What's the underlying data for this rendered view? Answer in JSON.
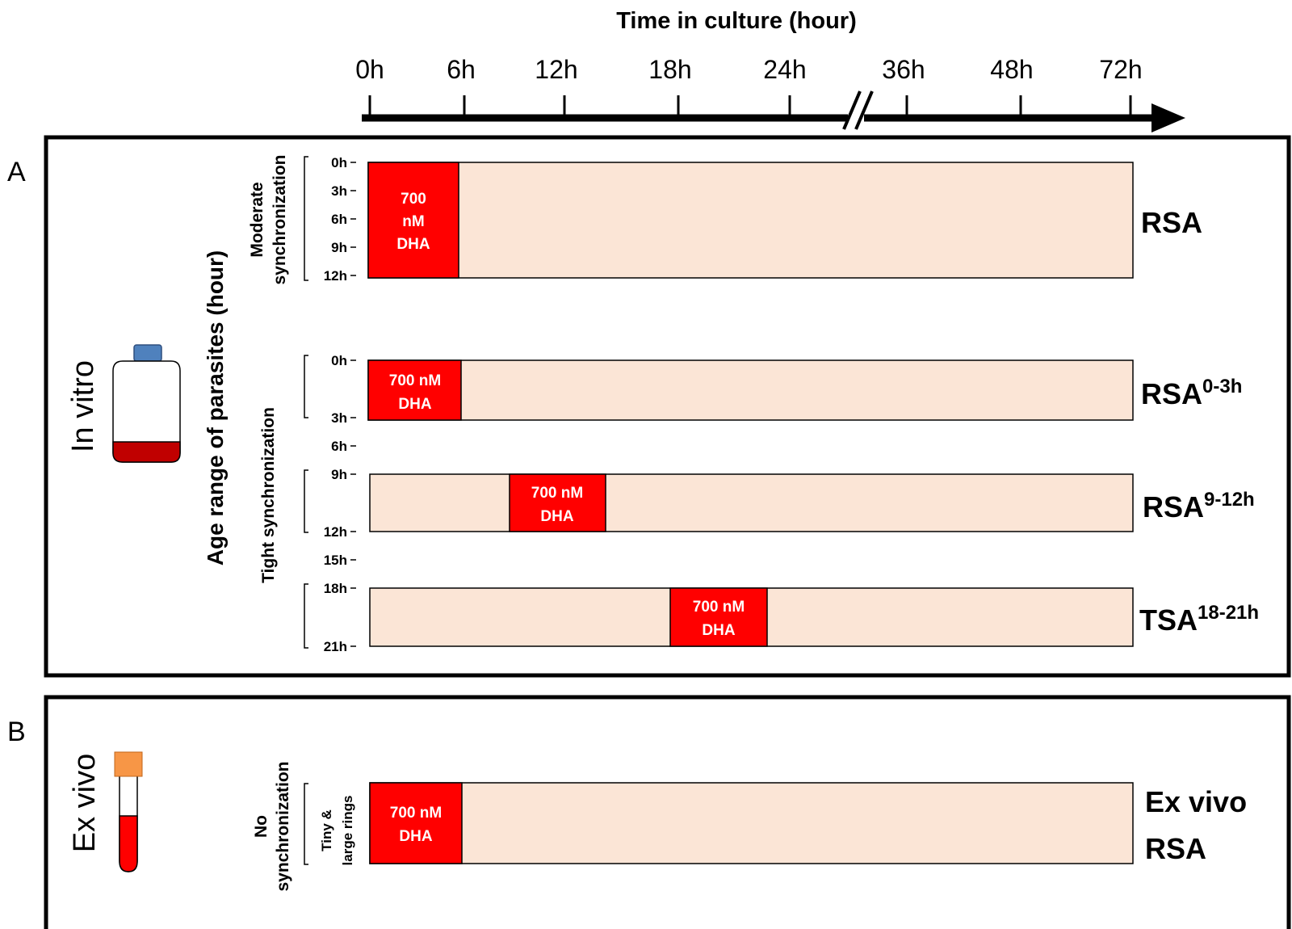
{
  "timeline": {
    "title": "Time in culture (hour)",
    "ticks": [
      "0h",
      "6h",
      "12h",
      "18h",
      "24h",
      "36h",
      "48h",
      "72h"
    ]
  },
  "panel_a": {
    "letter": "A",
    "condition_label": "In vitro",
    "y_axis_title": "Age range of parasites (hour)",
    "moderate_label_line1": "Moderate",
    "moderate_label_line2": "synchronization",
    "tight_label": "Tight synchronization",
    "moderate_ticks": [
      "0h",
      "3h",
      "6h",
      "9h",
      "12h"
    ],
    "tight_ticks": {
      "t0": "0h",
      "t3": "3h",
      "t6": "6h",
      "t9": "9h",
      "t12": "12h",
      "t15": "15h",
      "t18": "18h",
      "t21": "21h"
    },
    "rows": [
      {
        "label": "RSA",
        "superscript": "",
        "drug": [
          "700",
          "nM",
          "DHA"
        ]
      },
      {
        "label": "RSA",
        "superscript": "0-3h",
        "drug": [
          "700 nM",
          "DHA"
        ]
      },
      {
        "label": "RSA",
        "superscript": "9-12h",
        "drug": [
          "700 nM",
          "DHA"
        ]
      },
      {
        "label": "TSA",
        "superscript": "18-21h",
        "drug": [
          "700 nM",
          "DHA"
        ]
      }
    ]
  },
  "panel_b": {
    "letter": "B",
    "condition_label": "Ex vivo",
    "sync_label_line1": "No",
    "sync_label_line2": "synchronization",
    "ring_label_line1": "Tiny &",
    "ring_label_line2": "large rings",
    "row": {
      "label_line1": "Ex vivo",
      "label_line2": "RSA",
      "drug": [
        "700 nM",
        "DHA"
      ]
    }
  },
  "colors": {
    "bar_fill": "#fbe5d6",
    "drug_fill": "#ff0000",
    "flask_cap": "#4f81bd",
    "flask_media": "#c00000",
    "tube_cap": "#f79646",
    "tube_blood": "#ff0000"
  }
}
